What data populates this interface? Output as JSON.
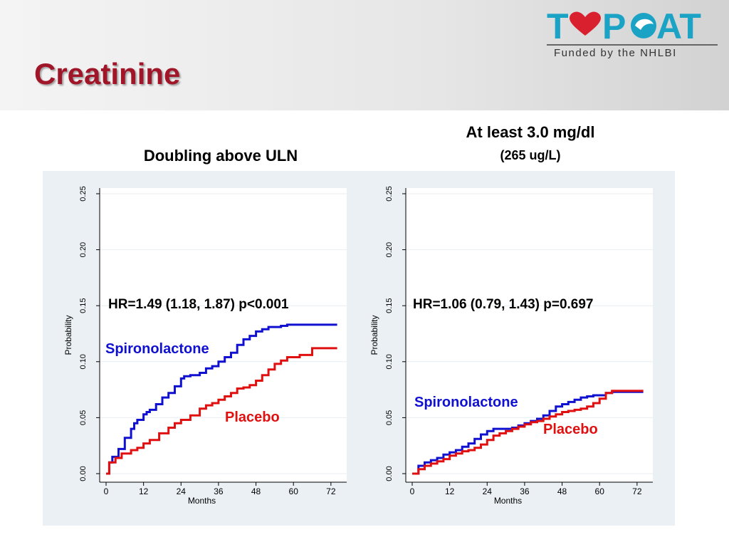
{
  "slide": {
    "title": "Creatinine"
  },
  "logo": {
    "text": "T♥P●AT",
    "subtitle": "Funded by the NHLBI"
  },
  "colors": {
    "title": "#a01528",
    "spironolactone": "#1010d0",
    "placebo": "#e01010",
    "logo": "#1aa3c4"
  },
  "chart_data": [
    {
      "type": "line",
      "title": "Doubling above ULN",
      "xlabel": "Months",
      "ylabel": "Probability",
      "xticks": [
        0,
        12,
        24,
        36,
        48,
        60,
        72
      ],
      "yticks": [
        "0.00",
        "0.05",
        "0.10",
        "0.15",
        "0.20",
        "0.25"
      ],
      "xlim": [
        0,
        75
      ],
      "ylim": [
        0,
        0.25
      ],
      "annotation": "HR=1.49 (1.18, 1.87) p<0.001",
      "series": [
        {
          "name": "Spironolactone",
          "x": [
            0,
            1,
            2,
            4,
            6,
            8,
            9,
            10,
            12,
            13,
            14,
            16,
            18,
            20,
            22,
            24,
            25,
            27,
            30,
            32,
            34,
            36,
            38,
            40,
            42,
            44,
            46,
            48,
            50,
            52,
            54,
            56,
            58,
            62,
            66,
            70,
            74
          ],
          "y": [
            0.0,
            0.01,
            0.015,
            0.022,
            0.032,
            0.04,
            0.045,
            0.048,
            0.053,
            0.055,
            0.057,
            0.062,
            0.068,
            0.072,
            0.078,
            0.085,
            0.087,
            0.088,
            0.09,
            0.094,
            0.096,
            0.1,
            0.104,
            0.108,
            0.115,
            0.12,
            0.123,
            0.127,
            0.129,
            0.131,
            0.131,
            0.132,
            0.133,
            0.133,
            0.133,
            0.133,
            0.133
          ]
        },
        {
          "name": "Placebo",
          "x": [
            0,
            1,
            3,
            5,
            8,
            10,
            12,
            14,
            17,
            20,
            22,
            24,
            27,
            30,
            32,
            34,
            36,
            38,
            40,
            42,
            44,
            46,
            48,
            50,
            52,
            54,
            56,
            58,
            62,
            66,
            70,
            74
          ],
          "y": [
            0.0,
            0.01,
            0.014,
            0.018,
            0.021,
            0.023,
            0.027,
            0.03,
            0.036,
            0.041,
            0.045,
            0.048,
            0.052,
            0.058,
            0.061,
            0.063,
            0.066,
            0.069,
            0.072,
            0.076,
            0.077,
            0.079,
            0.083,
            0.088,
            0.093,
            0.098,
            0.101,
            0.104,
            0.106,
            0.112,
            0.112,
            0.112
          ]
        }
      ]
    },
    {
      "type": "line",
      "title": "At least 3.0 mg/dl",
      "subtitle": "(265 ug/L)",
      "xlabel": "Months",
      "ylabel": "Probability",
      "xticks": [
        0,
        12,
        24,
        36,
        48,
        60,
        72
      ],
      "yticks": [
        "0.00",
        "0.05",
        "0.10",
        "0.15",
        "0.20",
        "0.25"
      ],
      "xlim": [
        0,
        75
      ],
      "ylim": [
        0,
        0.25
      ],
      "annotation": "HR=1.06 (0.79, 1.43) p=0.697",
      "series": [
        {
          "name": "Spironolactone",
          "x": [
            0,
            2,
            4,
            6,
            8,
            10,
            12,
            14,
            16,
            18,
            20,
            22,
            24,
            26,
            28,
            30,
            32,
            34,
            36,
            38,
            40,
            42,
            44,
            46,
            48,
            50,
            52,
            54,
            56,
            58,
            60,
            62,
            64,
            66,
            70,
            74
          ],
          "y": [
            0.0,
            0.007,
            0.01,
            0.012,
            0.014,
            0.017,
            0.019,
            0.021,
            0.024,
            0.027,
            0.031,
            0.035,
            0.038,
            0.04,
            0.04,
            0.04,
            0.041,
            0.043,
            0.045,
            0.047,
            0.049,
            0.052,
            0.056,
            0.06,
            0.062,
            0.064,
            0.066,
            0.068,
            0.069,
            0.07,
            0.07,
            0.072,
            0.073,
            0.073,
            0.073,
            0.073
          ]
        },
        {
          "name": "Placebo",
          "x": [
            0,
            2,
            4,
            6,
            8,
            10,
            12,
            14,
            16,
            18,
            20,
            22,
            24,
            26,
            28,
            30,
            32,
            34,
            36,
            38,
            40,
            42,
            44,
            46,
            48,
            50,
            52,
            54,
            56,
            58,
            60,
            62,
            64,
            66,
            70,
            74
          ],
          "y": [
            0.0,
            0.004,
            0.007,
            0.009,
            0.011,
            0.013,
            0.016,
            0.018,
            0.02,
            0.021,
            0.023,
            0.026,
            0.03,
            0.034,
            0.036,
            0.038,
            0.04,
            0.042,
            0.044,
            0.046,
            0.047,
            0.049,
            0.051,
            0.053,
            0.055,
            0.056,
            0.057,
            0.058,
            0.06,
            0.063,
            0.067,
            0.072,
            0.074,
            0.074,
            0.074,
            0.074
          ]
        }
      ]
    }
  ]
}
